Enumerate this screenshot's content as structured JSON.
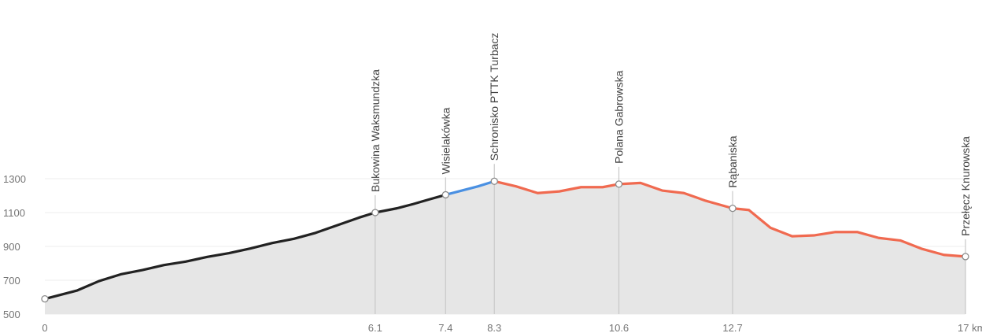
{
  "chart_data": {
    "type": "area",
    "title": "",
    "xlabel": "",
    "ylabel": "",
    "x_unit": "km",
    "xlim": [
      0,
      17
    ],
    "ylim": [
      500,
      1300
    ],
    "y_ticks": [
      500,
      700,
      900,
      1100,
      1300
    ],
    "x_ticks": [
      {
        "value": 0,
        "label": "0"
      },
      {
        "value": 6.1,
        "label": "6.1"
      },
      {
        "value": 7.4,
        "label": "7.4"
      },
      {
        "value": 8.3,
        "label": "8.3"
      },
      {
        "value": 10.6,
        "label": "10.6"
      },
      {
        "value": 12.7,
        "label": "12.7"
      },
      {
        "value": 17,
        "label": "17 km"
      }
    ],
    "fill_color": "#e6e6e6",
    "series": [
      {
        "color": "#222222",
        "points": [
          [
            0,
            590
          ],
          [
            0.3,
            615
          ],
          [
            0.6,
            640
          ],
          [
            1.0,
            695
          ],
          [
            1.4,
            735
          ],
          [
            1.8,
            760
          ],
          [
            2.2,
            790
          ],
          [
            2.6,
            810
          ],
          [
            3.0,
            838
          ],
          [
            3.4,
            860
          ],
          [
            3.8,
            888
          ],
          [
            4.2,
            920
          ],
          [
            4.6,
            945
          ],
          [
            5.0,
            980
          ],
          [
            5.4,
            1025
          ],
          [
            5.8,
            1070
          ],
          [
            6.1,
            1100
          ],
          [
            6.5,
            1125
          ],
          [
            6.8,
            1150
          ],
          [
            7.1,
            1178
          ],
          [
            7.4,
            1205
          ]
        ]
      },
      {
        "color": "#4a90e2",
        "points": [
          [
            7.4,
            1205
          ],
          [
            7.7,
            1230
          ],
          [
            8.0,
            1255
          ],
          [
            8.3,
            1285
          ]
        ]
      },
      {
        "color": "#f06a50",
        "points": [
          [
            8.3,
            1285
          ],
          [
            8.7,
            1255
          ],
          [
            9.1,
            1215
          ],
          [
            9.5,
            1225
          ],
          [
            9.9,
            1250
          ],
          [
            10.3,
            1250
          ],
          [
            10.6,
            1268
          ],
          [
            11.0,
            1275
          ],
          [
            11.4,
            1230
          ],
          [
            11.8,
            1215
          ],
          [
            12.2,
            1170
          ],
          [
            12.7,
            1125
          ],
          [
            13.0,
            1115
          ],
          [
            13.4,
            1010
          ],
          [
            13.8,
            960
          ],
          [
            14.2,
            965
          ],
          [
            14.6,
            985
          ],
          [
            15.0,
            985
          ],
          [
            15.4,
            950
          ],
          [
            15.8,
            935
          ],
          [
            16.2,
            885
          ],
          [
            16.6,
            850
          ],
          [
            17.0,
            840
          ]
        ]
      }
    ],
    "waypoints": [
      {
        "x": 0,
        "y": 590,
        "label": ""
      },
      {
        "x": 6.1,
        "y": 1100,
        "label": "Bukowina Waksmundzka"
      },
      {
        "x": 7.4,
        "y": 1205,
        "label": "Wisielakówka"
      },
      {
        "x": 8.3,
        "y": 1285,
        "label": "Schronisko PTTK Turbacz"
      },
      {
        "x": 10.6,
        "y": 1268,
        "label": "Polana Gabrowska"
      },
      {
        "x": 12.7,
        "y": 1125,
        "label": "Rąbaniska"
      },
      {
        "x": 17,
        "y": 840,
        "label": "Przełęcz Knurowska"
      }
    ]
  }
}
